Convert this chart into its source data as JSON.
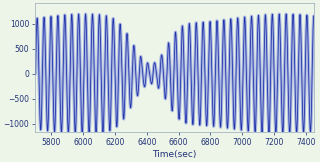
{
  "x_start": 5700,
  "x_end": 7450,
  "xlim": [
    5700,
    7450
  ],
  "ylim": [
    -1150,
    1400
  ],
  "xlabel": "Time(sec)",
  "background_color": "#edf5e8",
  "line_color_outer": "#8899dd",
  "line_color_inner": "#2233aa",
  "xticks": [
    5800,
    6000,
    6200,
    6400,
    6600,
    6800,
    7000,
    7200,
    7400
  ],
  "yticks": [
    -1000,
    -500,
    0,
    500,
    1000
  ],
  "freq": 0.023,
  "amplitude_base": 1100,
  "figsize": [
    3.2,
    1.62
  ],
  "dpi": 100
}
